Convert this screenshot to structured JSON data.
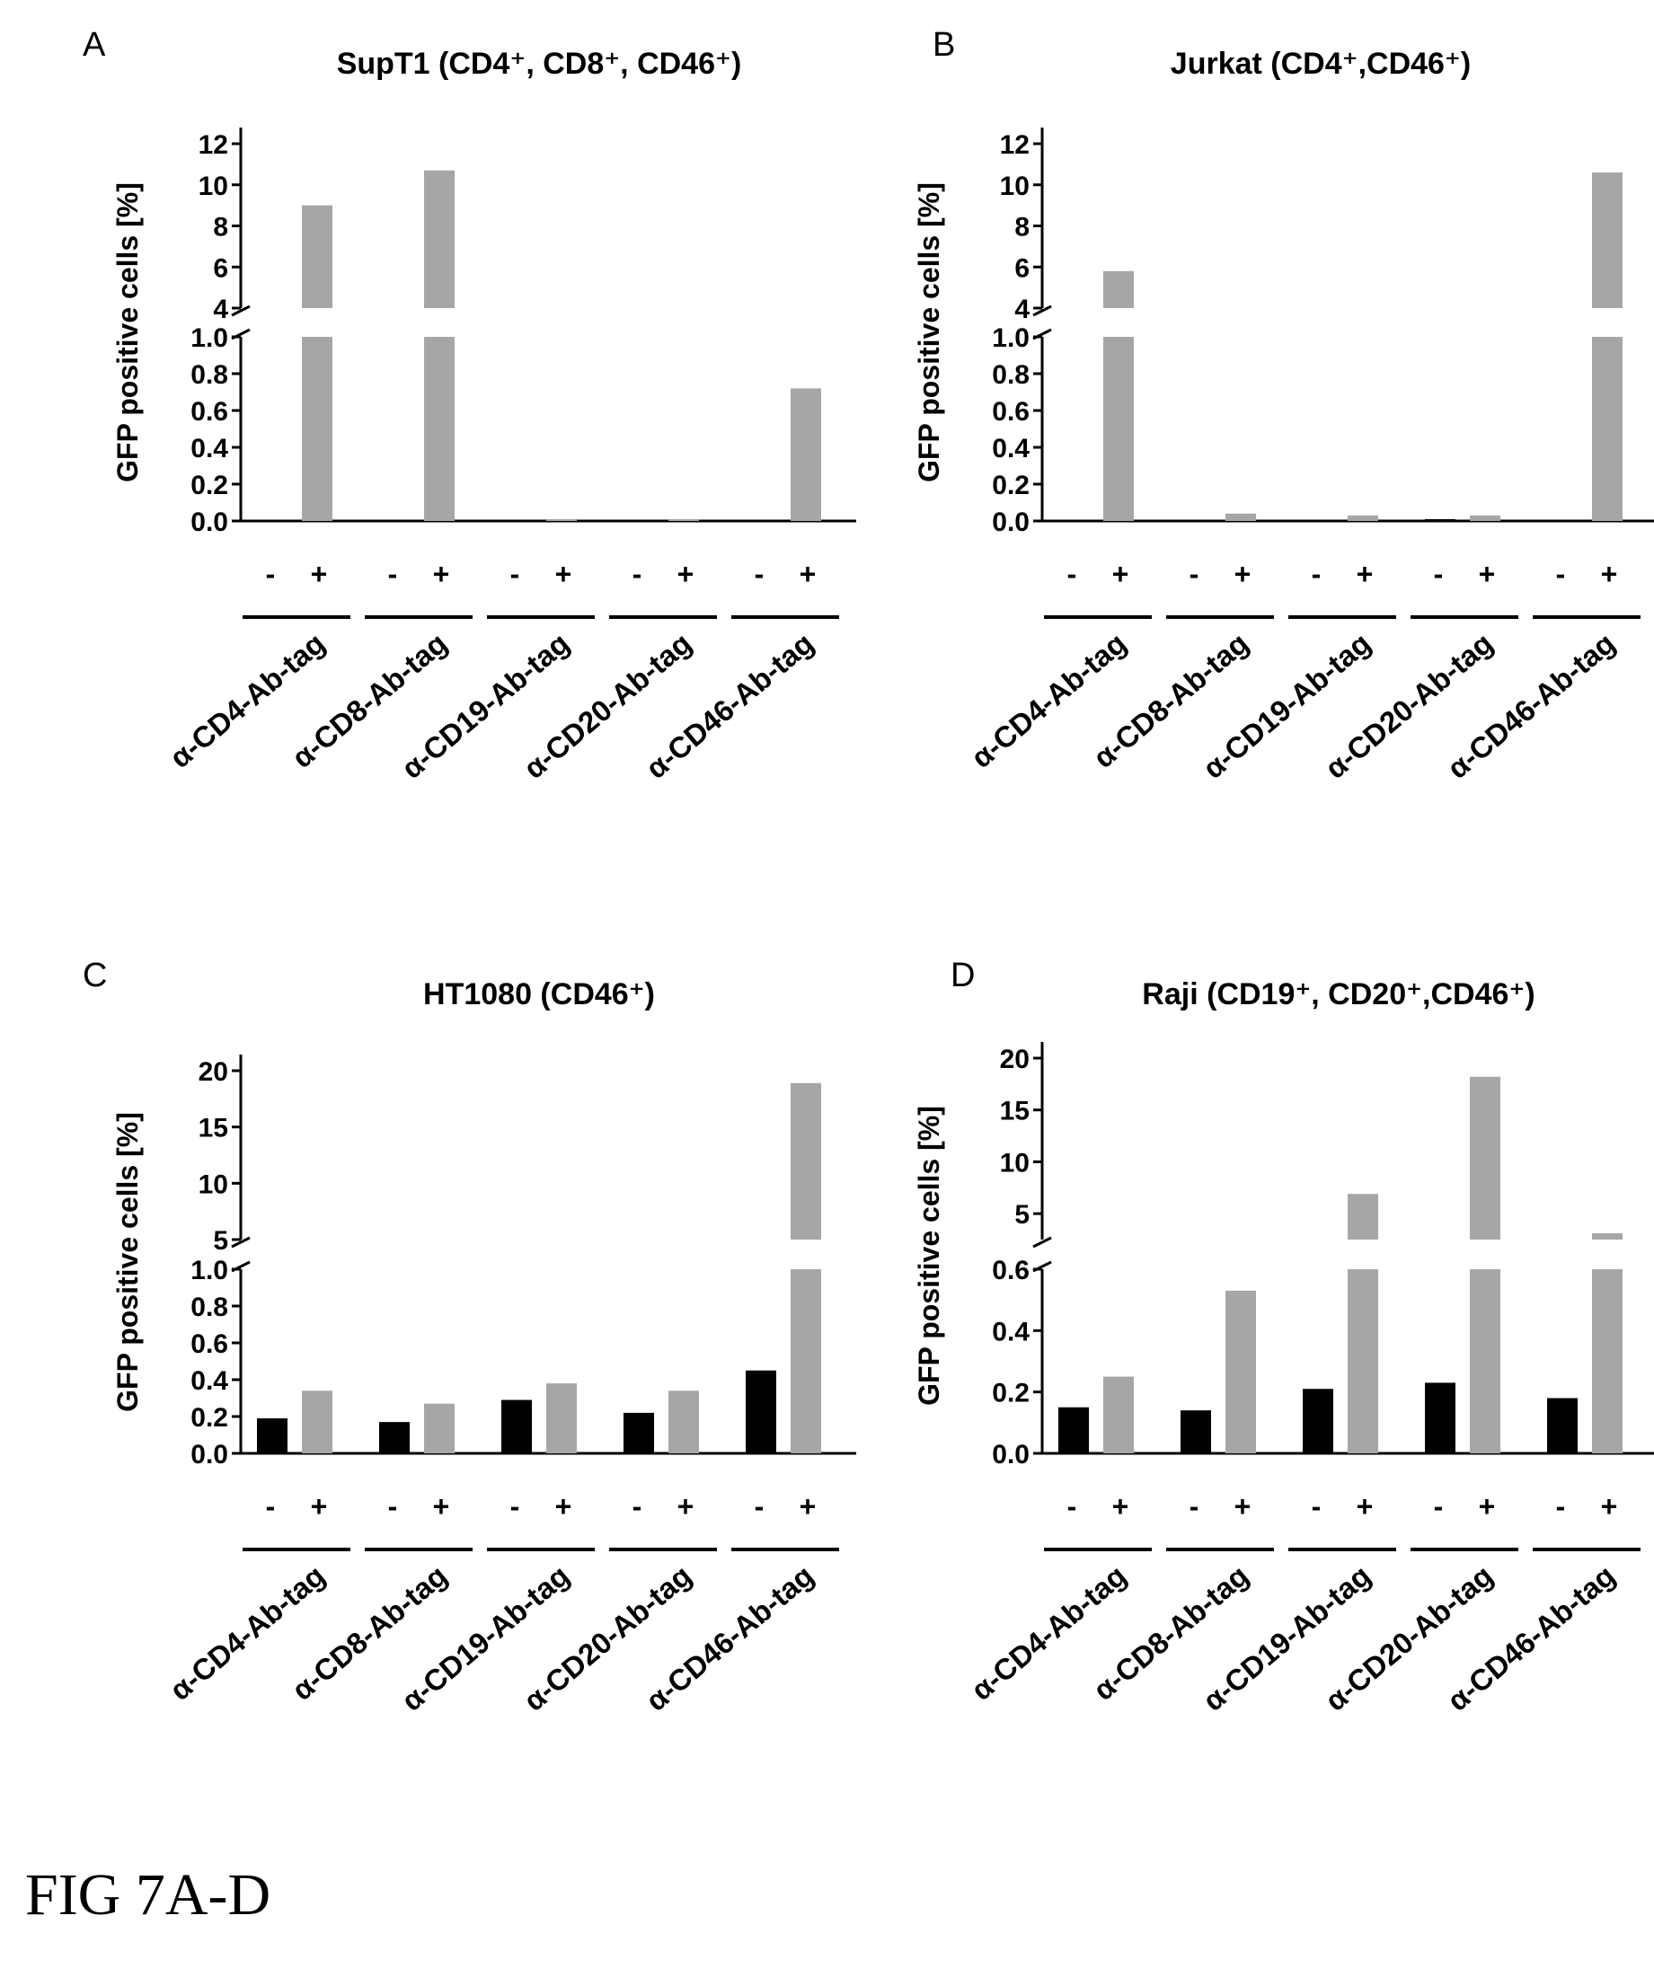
{
  "caption": "FIG 7A-D",
  "y_axis_label": "GFP positive cells [%]",
  "condition_labels": [
    "-",
    "+"
  ],
  "legend": "",
  "chart_data": [
    {
      "type": "bar",
      "panel_letter": "A",
      "title": "SupT1 (CD4⁺, CD8⁺, CD46⁺)",
      "categories": [
        "α-CD4-Ab-tag",
        "α-CD8-Ab-tag",
        "α-CD19-Ab-tag",
        "α-CD20-Ab-tag",
        "α-CD46-Ab-tag"
      ],
      "series": [
        {
          "label": "-",
          "color": "#000000",
          "values": [
            0,
            0,
            0,
            0,
            0
          ]
        },
        {
          "label": "+",
          "color": "#a6a6a6",
          "values": [
            9.0,
            10.7,
            0.01,
            0.005,
            0.72
          ]
        }
      ],
      "ylabel": "GFP positive cells [%]",
      "broken_axis": true,
      "lower_ylim": [
        0,
        1.0
      ],
      "upper_ylim": [
        4,
        12
      ],
      "lower_ticks": [
        "0.0",
        "0.2",
        "0.4",
        "0.6",
        "0.8",
        "1.0"
      ],
      "upper_ticks": [
        "4",
        "6",
        "8",
        "10",
        "12"
      ],
      "grid": false
    },
    {
      "type": "bar",
      "panel_letter": "B",
      "title": "Jurkat (CD4⁺,CD46⁺)",
      "categories": [
        "α-CD4-Ab-tag",
        "α-CD8-Ab-tag",
        "α-CD19-Ab-tag",
        "α-CD20-Ab-tag",
        "α-CD46-Ab-tag"
      ],
      "series": [
        {
          "label": "-",
          "color": "#000000",
          "values": [
            0,
            0,
            0,
            0.01,
            0
          ]
        },
        {
          "label": "+",
          "color": "#a6a6a6",
          "values": [
            5.8,
            0.04,
            0.03,
            0.03,
            10.6
          ]
        }
      ],
      "ylabel": "GFP positive cells [%]",
      "broken_axis": true,
      "lower_ylim": [
        0,
        1.0
      ],
      "upper_ylim": [
        4,
        12
      ],
      "lower_ticks": [
        "0.0",
        "0.2",
        "0.4",
        "0.6",
        "0.8",
        "1.0"
      ],
      "upper_ticks": [
        "4",
        "6",
        "8",
        "10",
        "12"
      ],
      "grid": false
    },
    {
      "type": "bar",
      "panel_letter": "C",
      "title": "HT1080 (CD46⁺)",
      "categories": [
        "α-CD4-Ab-tag",
        "α-CD8-Ab-tag",
        "α-CD19-Ab-tag",
        "α-CD20-Ab-tag",
        "α-CD46-Ab-tag"
      ],
      "series": [
        {
          "label": "-",
          "color": "#000000",
          "values": [
            0.19,
            0.17,
            0.29,
            0.22,
            0.45
          ]
        },
        {
          "label": "+",
          "color": "#a6a6a6",
          "values": [
            0.34,
            0.27,
            0.38,
            0.34,
            18.9
          ]
        }
      ],
      "ylabel": "GFP positive cells [%]",
      "broken_axis": true,
      "lower_ylim": [
        0,
        1.0
      ],
      "upper_ylim": [
        5,
        20
      ],
      "lower_ticks": [
        "0.0",
        "0.2",
        "0.4",
        "0.6",
        "0.8",
        "1.0"
      ],
      "upper_ticks": [
        "5",
        "10",
        "15",
        "20"
      ],
      "grid": false
    },
    {
      "type": "bar",
      "panel_letter": "D",
      "title": "Raji (CD19⁺, CD20⁺,CD46⁺)",
      "categories": [
        "α-CD4-Ab-tag",
        "α-CD8-Ab-tag",
        "α-CD19-Ab-tag",
        "α-CD20-Ab-tag",
        "α-CD46-Ab-tag"
      ],
      "series": [
        {
          "label": "-",
          "color": "#000000",
          "values": [
            0.15,
            0.14,
            0.21,
            0.23,
            0.18
          ]
        },
        {
          "label": "+",
          "color": "#a6a6a6",
          "values": [
            0.25,
            0.53,
            6.9,
            18.2,
            3.1
          ]
        }
      ],
      "ylabel": "GFP positive cells [%]",
      "broken_axis": true,
      "lower_ylim": [
        0,
        0.6
      ],
      "upper_ylim": [
        2.5,
        20
      ],
      "lower_ticks": [
        "0.0",
        "0.2",
        "0.4",
        "0.6"
      ],
      "upper_ticks": [
        "5",
        "10",
        "15",
        "20"
      ],
      "grid": false
    }
  ]
}
